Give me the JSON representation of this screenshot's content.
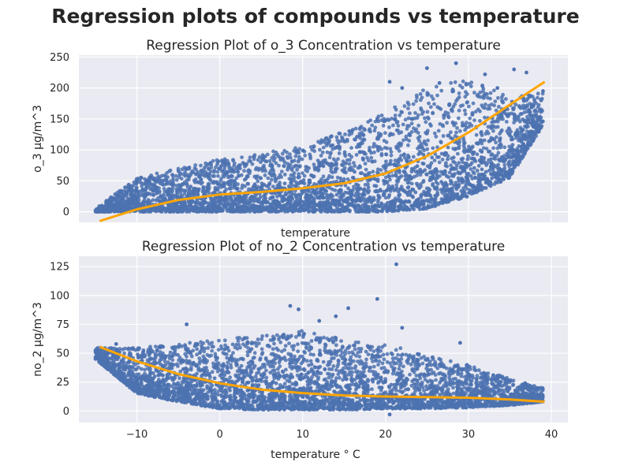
{
  "figure": {
    "suptitle": "Regression plots of compounds vs temperature"
  },
  "chart_data": [
    {
      "type": "scatter",
      "title": "Regression Plot of o_3 Concentration vs temperature",
      "xlabel": "temperature",
      "ylabel": "o_3 μg/m^3",
      "xlim": [
        -17,
        42
      ],
      "ylim": [
        -17,
        253
      ],
      "xticks": [
        -10,
        0,
        10,
        20,
        30,
        40
      ],
      "xticks_labeled": false,
      "yticks": [
        0,
        50,
        100,
        150,
        200,
        250
      ],
      "ytick_labels": [
        "0",
        "50",
        "100",
        "150",
        "200",
        "250"
      ],
      "grid": true,
      "background": "#eaeaf2",
      "colors": {
        "points": "#4c72b0",
        "fit": "#ffa500"
      },
      "fit_curve": {
        "x": [
          -14.5,
          -10,
          -5,
          0,
          5,
          10,
          15,
          20,
          25,
          30,
          35,
          39.2
        ],
        "y": [
          -15,
          4,
          19,
          28,
          32,
          38,
          46,
          62,
          90,
          128,
          173,
          210
        ]
      },
      "scatter_bands": {
        "x": [
          -15,
          -10,
          -5,
          0,
          5,
          10,
          15,
          20,
          25,
          30,
          35,
          39
        ],
        "low": [
          0,
          0,
          0,
          0,
          0,
          0,
          0,
          0,
          5,
          25,
          55,
          140
        ],
        "high": [
          5,
          55,
          70,
          85,
          95,
          105,
          130,
          160,
          200,
          215,
          185,
          195
        ],
        "outliers": [
          [
            28.5,
            240
          ],
          [
            25,
            232
          ],
          [
            35.5,
            230
          ],
          [
            37,
            225
          ],
          [
            32,
            222
          ],
          [
            20.5,
            210
          ],
          [
            22,
            200
          ],
          [
            -9.5,
            55
          ],
          [
            -11,
            35
          ],
          [
            -12,
            15
          ],
          [
            39,
            195
          ],
          [
            33.5,
            200
          ],
          [
            26.5,
            208
          ]
        ]
      }
    },
    {
      "type": "scatter",
      "title": "Regression Plot of no_2 Concentration vs temperature",
      "xlabel": "temperature ° C",
      "ylabel": "no_2 μg/m^3",
      "xlim": [
        -17,
        42
      ],
      "ylim": [
        -10,
        134
      ],
      "xticks": [
        -10,
        0,
        10,
        20,
        30,
        40
      ],
      "xtick_labels": [
        "−10",
        "0",
        "10",
        "20",
        "30",
        "40"
      ],
      "yticks": [
        0,
        25,
        50,
        75,
        100,
        125
      ],
      "ytick_labels": [
        "0",
        "25",
        "50",
        "75",
        "100",
        "125"
      ],
      "grid": true,
      "background": "#eaeaf2",
      "colors": {
        "points": "#4c72b0",
        "fit": "#ffa500"
      },
      "fit_curve": {
        "x": [
          -14.5,
          -10,
          -5,
          0,
          5,
          10,
          15,
          20,
          25,
          30,
          35,
          39.2
        ],
        "y": [
          55.5,
          43,
          32,
          24,
          18.5,
          15.5,
          13.5,
          12.5,
          12,
          11.5,
          10,
          8
        ]
      },
      "scatter_bands": {
        "x": [
          -15,
          -10,
          -5,
          0,
          5,
          10,
          15,
          20,
          25,
          30,
          35,
          39
        ],
        "low": [
          45,
          15,
          8,
          2,
          1,
          1,
          1,
          2,
          2,
          3,
          5,
          8
        ],
        "high": [
          55,
          55,
          58,
          62,
          65,
          70,
          62,
          58,
          48,
          40,
          28,
          20
        ],
        "outliers": [
          [
            21.3,
            127
          ],
          [
            19,
            97
          ],
          [
            8.5,
            91
          ],
          [
            9.5,
            88
          ],
          [
            15.5,
            89
          ],
          [
            14,
            82
          ],
          [
            -4,
            75
          ],
          [
            12,
            78
          ],
          [
            22,
            72
          ],
          [
            29,
            59
          ],
          [
            33,
            31
          ],
          [
            37,
            20
          ],
          [
            -14.5,
            52
          ],
          [
            -14,
            49
          ],
          [
            -12.5,
            58
          ],
          [
            20.5,
            -3
          ]
        ]
      }
    }
  ]
}
